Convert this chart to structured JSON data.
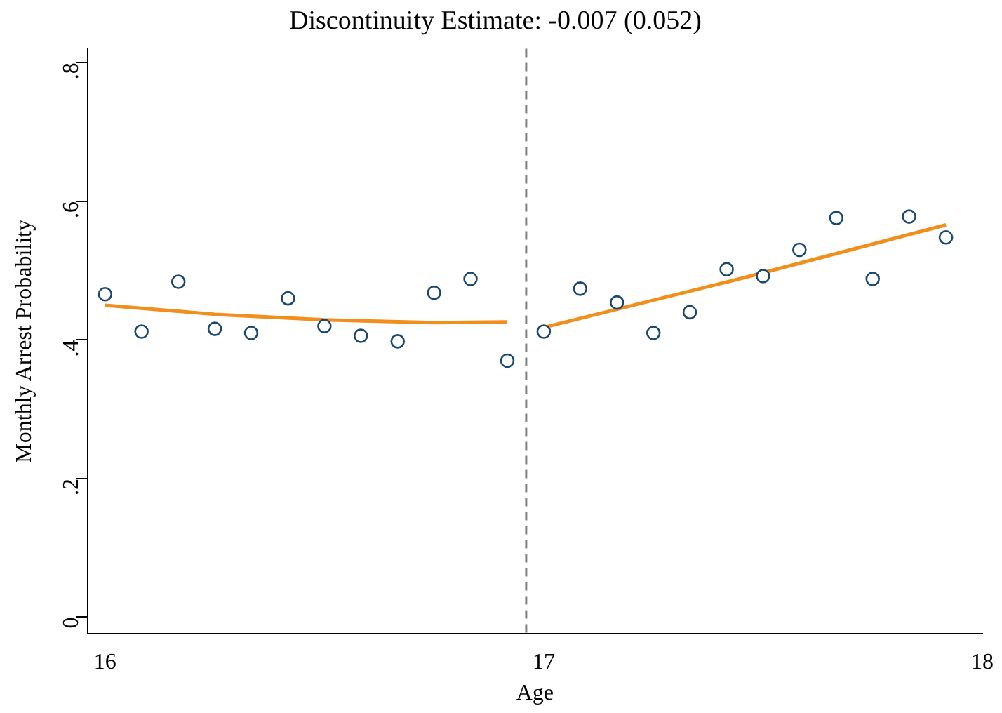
{
  "chart_data": {
    "type": "scatter",
    "title": "Discontinuity Estimate: -0.007 (0.052)",
    "xlabel": "Age",
    "ylabel": "Monthly Arrest Probability",
    "xlim": [
      15.96,
      18.0
    ],
    "xticks": [
      16,
      17,
      18
    ],
    "ylim": [
      -0.024,
      0.82
    ],
    "yticks": [
      {
        "value": 0,
        "label": "0"
      },
      {
        "value": 0.2,
        "label": ".2"
      },
      {
        "value": 0.4,
        "label": ".4"
      },
      {
        "value": 0.6,
        "label": ".6"
      },
      {
        "value": 0.8,
        "label": ".8"
      }
    ],
    "grid": false,
    "legend": false,
    "ref_lines": [
      {
        "axis": "x",
        "value": 16.96,
        "color": "#808080",
        "line_style": "dashed"
      }
    ],
    "series": [
      {
        "color": "#1a476f",
        "marker": "circle",
        "x": [
          16.0,
          16.083,
          16.167,
          16.25,
          16.333,
          16.417,
          16.5,
          16.583,
          16.667,
          16.75,
          16.833,
          16.917,
          17.0,
          17.083,
          17.167,
          17.25,
          17.333,
          17.417,
          17.5,
          17.583,
          17.667,
          17.75,
          17.833,
          17.917
        ],
        "values": [
          0.466,
          0.412,
          0.484,
          0.416,
          0.41,
          0.46,
          0.42,
          0.406,
          0.398,
          0.468,
          0.488,
          0.37,
          0.412,
          0.474,
          0.454,
          0.41,
          0.44,
          0.502,
          0.492,
          0.53,
          0.576,
          0.488,
          0.578,
          0.548
        ]
      },
      {
        "type": "line",
        "color": "#f28e1c",
        "marker": "none",
        "x": [
          16.0,
          16.25,
          16.5,
          16.75,
          16.917
        ],
        "values": [
          0.45,
          0.437,
          0.429,
          0.425,
          0.426
        ]
      },
      {
        "type": "line",
        "color": "#f28e1c",
        "marker": "none",
        "x": [
          17.0,
          17.458,
          17.917
        ],
        "values": [
          0.418,
          0.49,
          0.566
        ]
      }
    ]
  }
}
